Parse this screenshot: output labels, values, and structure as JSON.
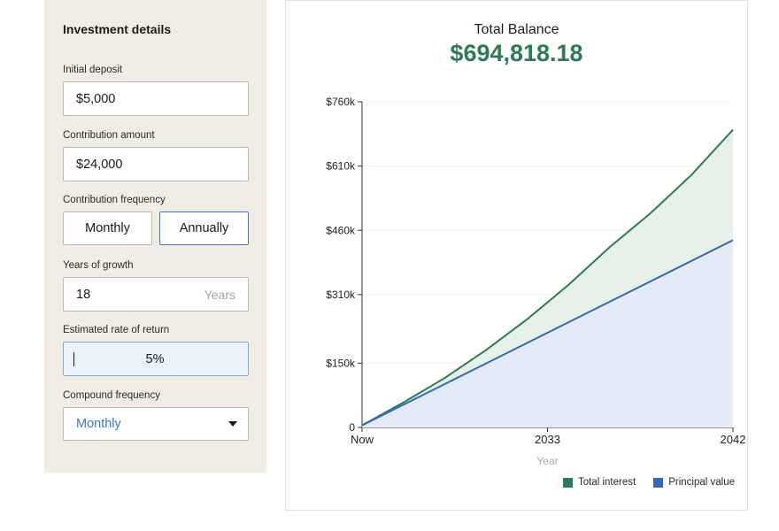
{
  "form": {
    "title": "Investment details",
    "initial_deposit": {
      "label": "Initial deposit",
      "value": "$5,000"
    },
    "contribution_amount": {
      "label": "Contribution amount",
      "value": "$24,000"
    },
    "contribution_frequency": {
      "label": "Contribution frequency",
      "options": [
        "Monthly",
        "Annually"
      ],
      "selected": "Annually"
    },
    "years_of_growth": {
      "label": "Years of growth",
      "value": "18",
      "suffix": "Years"
    },
    "rate_of_return": {
      "label": "Estimated rate of return",
      "value": "5%"
    },
    "compound_frequency": {
      "label": "Compound frequency",
      "selected": "Monthly"
    }
  },
  "summary": {
    "label": "Total Balance",
    "value": "$694,818.18"
  },
  "colors": {
    "interest": "#2e7a55",
    "principal": "#3367b8",
    "accent": "#3e78c6",
    "panel_bg": "#f2ede4"
  },
  "chart_data": {
    "type": "area",
    "xlabel": "Year",
    "ylabel": "",
    "x_tick_labels": [
      "Now",
      "2033",
      "2042"
    ],
    "x": [
      2024,
      2026,
      2028,
      2030,
      2032,
      2034,
      2036,
      2038,
      2040,
      2042
    ],
    "y_ticks": [
      {
        "value": 0,
        "label": "0"
      },
      {
        "value": 150000,
        "label": "$150k"
      },
      {
        "value": 310000,
        "label": "$310k"
      },
      {
        "value": 460000,
        "label": "$460k"
      },
      {
        "value": 610000,
        "label": "$610k"
      },
      {
        "value": 760000,
        "label": "$760k"
      }
    ],
    "ylim": [
      0,
      760000
    ],
    "xlim": [
      2024,
      2042
    ],
    "stacked": true,
    "series": [
      {
        "name": "Total interest",
        "color": "#2e7a55",
        "total_values": [
          5000,
          58000,
          115000,
          180000,
          252000,
          332000,
          420000,
          500000,
          590000,
          694818
        ]
      },
      {
        "name": "Principal value",
        "color": "#3367b8",
        "values": [
          5000,
          53000,
          101000,
          149000,
          197000,
          245000,
          293000,
          341000,
          389000,
          437000
        ]
      }
    ],
    "legend_position": "bottom-right",
    "grid": true
  }
}
